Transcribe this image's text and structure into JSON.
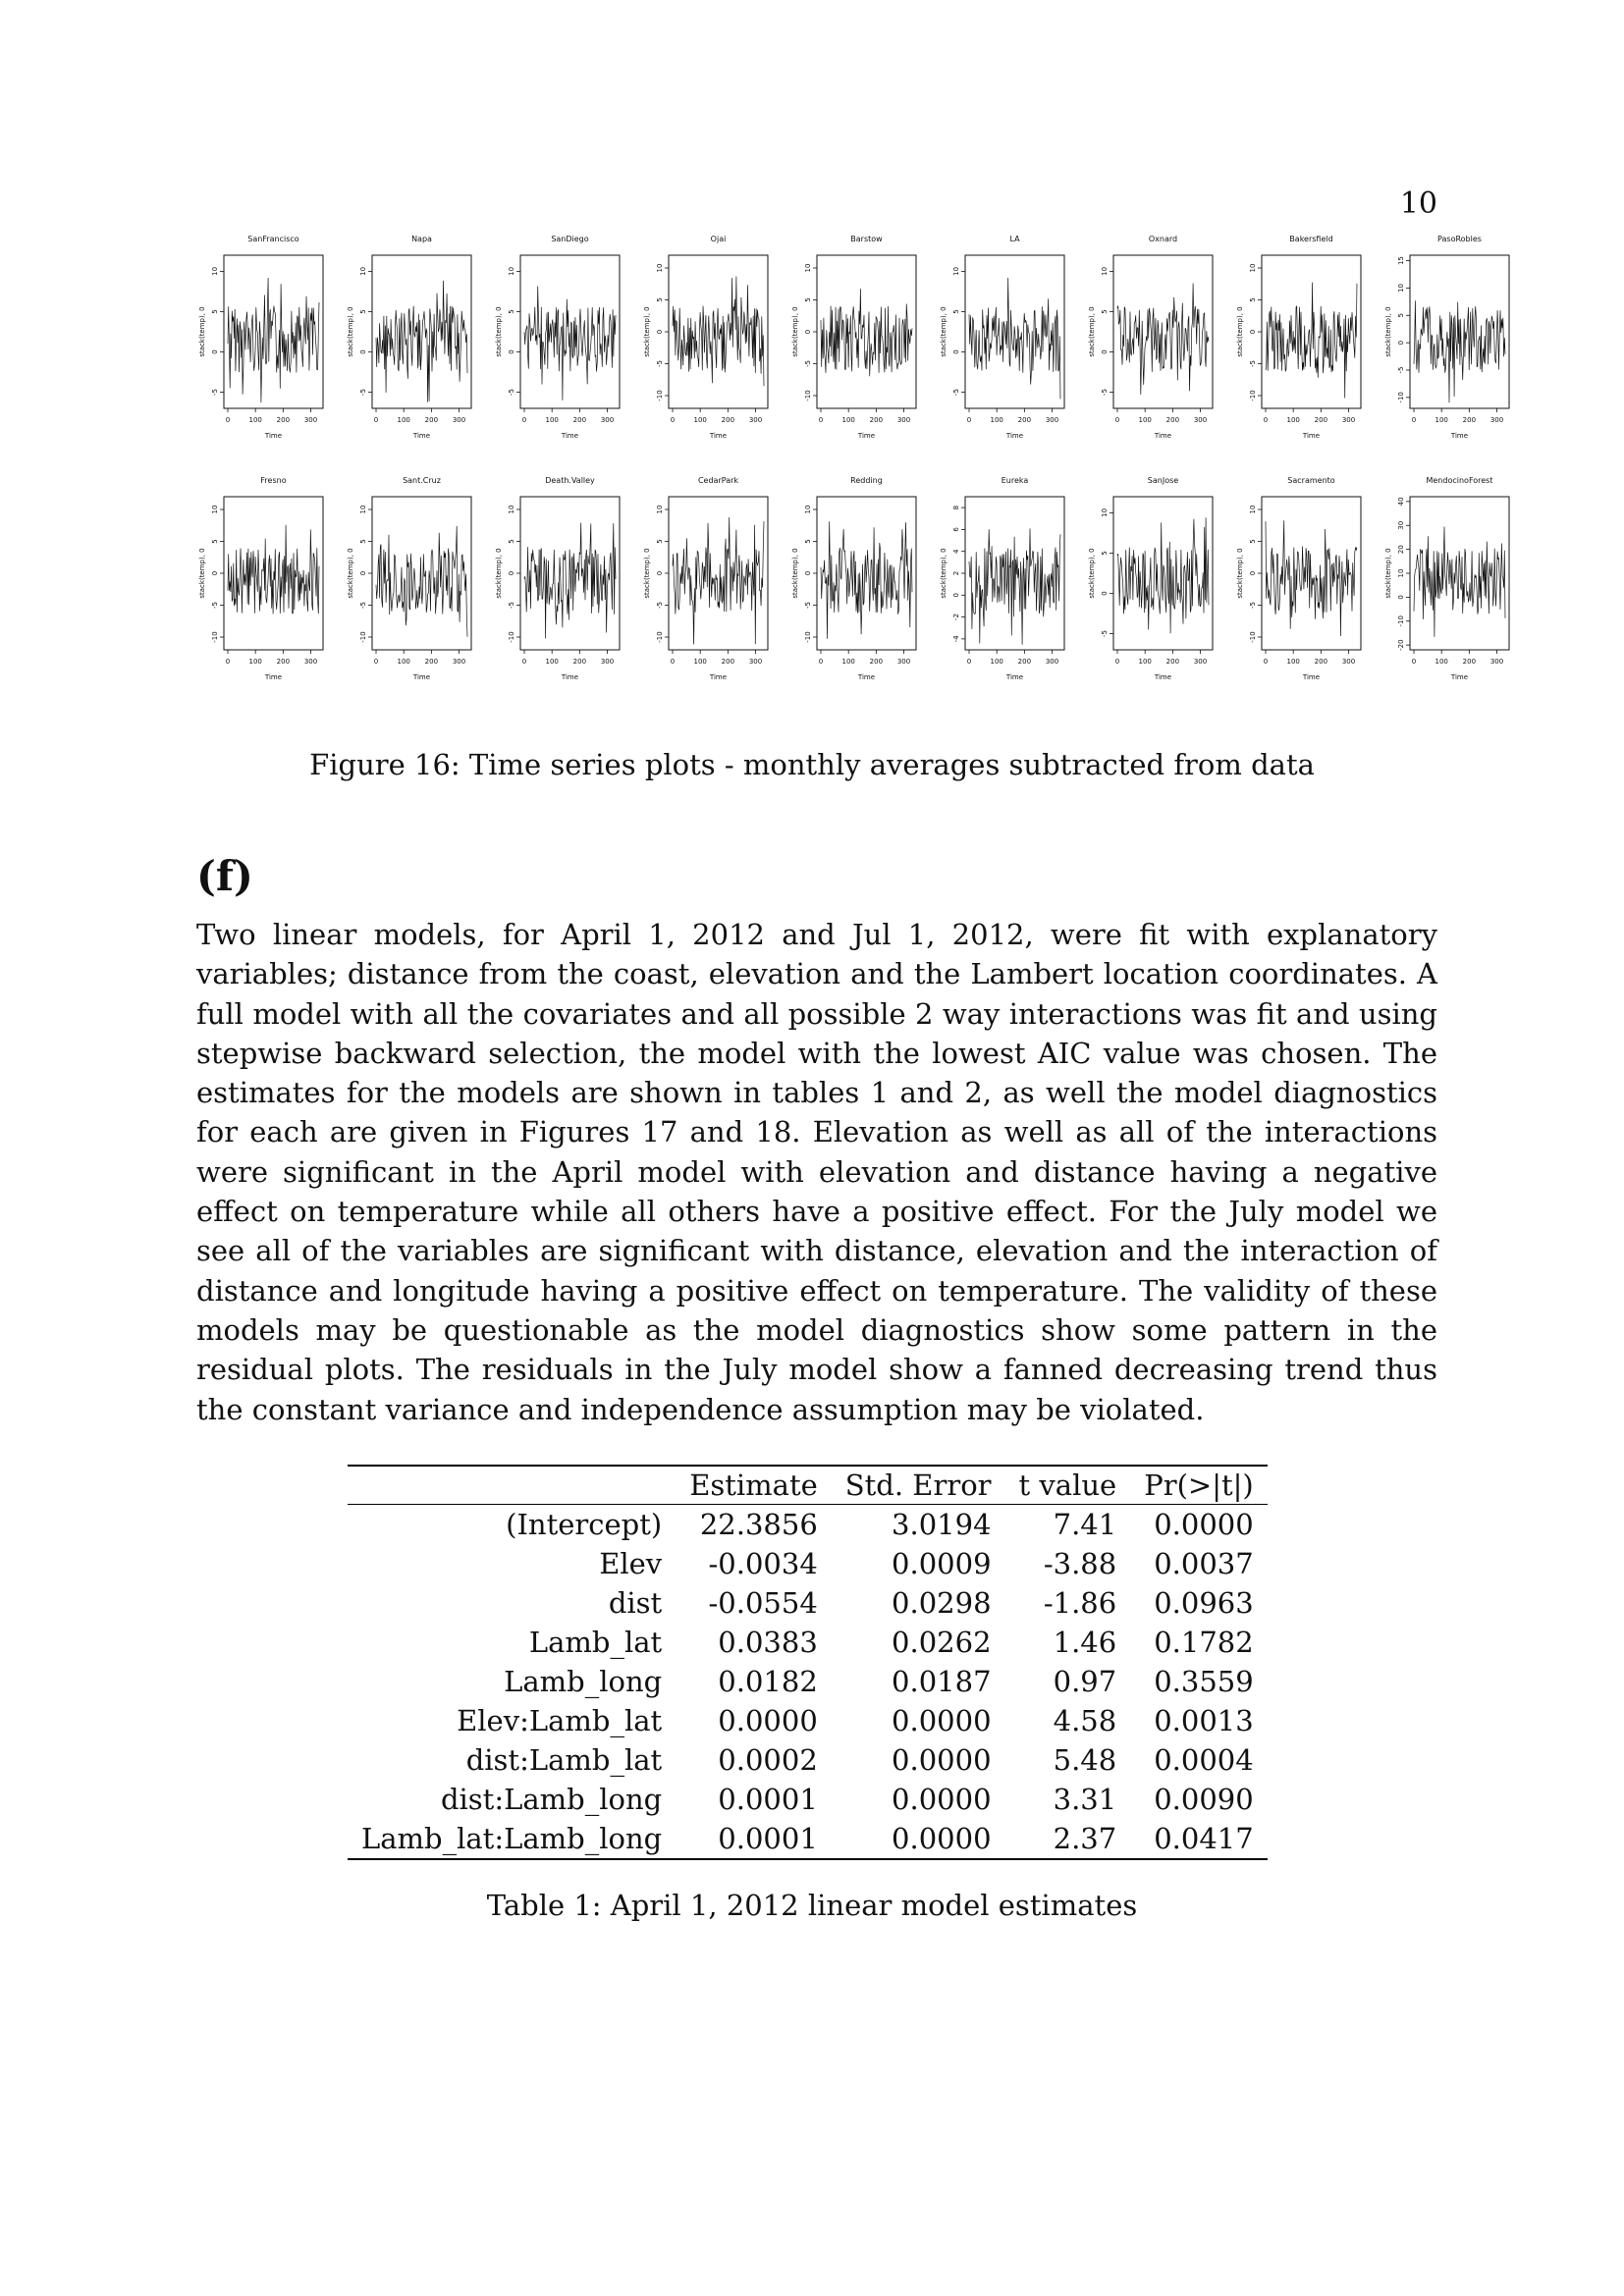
{
  "page_number": "10",
  "figure": {
    "caption": "Figure 16: Time series plots - monthly averages subtracted from data",
    "x_label": "Time",
    "y_label": "stack(temp), 0",
    "x_ticks": [
      "0",
      "100",
      "200",
      "300"
    ],
    "rows": [
      [
        {
          "title": "SanFrancisco",
          "y_ticks": [
            "10",
            "5",
            "0",
            "-5"
          ],
          "ymin": -7,
          "ymax": 12
        },
        {
          "title": "Napa",
          "y_ticks": [
            "10",
            "5",
            "0",
            "-5"
          ],
          "ymin": -7,
          "ymax": 12
        },
        {
          "title": "SanDiego",
          "y_ticks": [
            "10",
            "5",
            "0",
            "-5"
          ],
          "ymin": -7,
          "ymax": 12
        },
        {
          "title": "Ojai",
          "y_ticks": [
            "10",
            "5",
            "0",
            "-5",
            "-10"
          ],
          "ymin": -12,
          "ymax": 12
        },
        {
          "title": "Barstow",
          "y_ticks": [
            "10",
            "5",
            "0",
            "-5",
            "-10"
          ],
          "ymin": -12,
          "ymax": 12
        },
        {
          "title": "LA",
          "y_ticks": [
            "10",
            "5",
            "0",
            "-5"
          ],
          "ymin": -7,
          "ymax": 12
        },
        {
          "title": "Oxnard",
          "y_ticks": [
            "10",
            "5",
            "0",
            "-5"
          ],
          "ymin": -7,
          "ymax": 12
        },
        {
          "title": "Bakersfield",
          "y_ticks": [
            "10",
            "5",
            "0",
            "-5",
            "-10"
          ],
          "ymin": -12,
          "ymax": 12
        },
        {
          "title": "PasoRobles",
          "y_ticks": [
            "15",
            "10",
            "5",
            "0",
            "-5",
            "-10"
          ],
          "ymin": -12,
          "ymax": 16
        }
      ],
      [
        {
          "title": "Fresno",
          "y_ticks": [
            "10",
            "5",
            "0",
            "-5",
            "-10"
          ],
          "ymin": -12,
          "ymax": 12
        },
        {
          "title": "Sant.Cruz",
          "y_ticks": [
            "10",
            "5",
            "0",
            "-5",
            "-10"
          ],
          "ymin": -12,
          "ymax": 12
        },
        {
          "title": "Death.Valley",
          "y_ticks": [
            "10",
            "5",
            "0",
            "-5",
            "-10"
          ],
          "ymin": -12,
          "ymax": 12
        },
        {
          "title": "CedarPark",
          "y_ticks": [
            "10",
            "5",
            "0",
            "-5",
            "-10"
          ],
          "ymin": -12,
          "ymax": 12
        },
        {
          "title": "Redding",
          "y_ticks": [
            "10",
            "5",
            "0",
            "-5",
            "-10"
          ],
          "ymin": -12,
          "ymax": 12
        },
        {
          "title": "Eureka",
          "y_ticks": [
            "8",
            "6",
            "4",
            "2",
            "0",
            "-2",
            "-4"
          ],
          "ymin": -5,
          "ymax": 9
        },
        {
          "title": "SanJose",
          "y_ticks": [
            "10",
            "5",
            "0",
            "-5"
          ],
          "ymin": -7,
          "ymax": 12
        },
        {
          "title": "Sacramento",
          "y_ticks": [
            "10",
            "5",
            "0",
            "-5",
            "-10"
          ],
          "ymin": -12,
          "ymax": 12
        },
        {
          "title": "MendocinoForest",
          "y_ticks": [
            "40",
            "30",
            "20",
            "10",
            "0",
            "-10",
            "-20"
          ],
          "ymin": -22,
          "ymax": 42
        }
      ]
    ]
  },
  "section": {
    "heading": "(f)",
    "paragraph": "Two linear models, for April 1, 2012 and Jul 1, 2012, were fit with explanatory variables; distance from the coast, elevation and the Lambert location coordinates. A full model with all the covariates and all possible 2 way interactions was fit and using stepwise backward selection, the model with the lowest AIC value was chosen. The estimates for the models are shown in tables 1 and 2, as well the model diagnostics for each are given in Figures 17 and 18. Elevation as well as all of the interactions were significant in the April model with elevation and distance having a negative effect on temperature while all others have a positive effect. For the July model we see all of the variables are significant with distance, elevation and the interaction of distance and longitude having a positive effect on temperature. The validity of these models may be questionable as the model diagnostics show some pattern in the residual plots. The residuals in the July model show a fanned decreasing trend thus the constant variance and independence assumption may be violated."
  },
  "table": {
    "caption": "Table 1: April 1, 2012 linear model estimates",
    "headers": [
      "",
      "Estimate",
      "Std. Error",
      "t value",
      "Pr(>|t|)"
    ],
    "rows": [
      [
        "(Intercept)",
        "22.3856",
        "3.0194",
        "7.41",
        "0.0000"
      ],
      [
        "Elev",
        "-0.0034",
        "0.0009",
        "-3.88",
        "0.0037"
      ],
      [
        "dist",
        "-0.0554",
        "0.0298",
        "-1.86",
        "0.0963"
      ],
      [
        "Lamb_lat",
        "0.0383",
        "0.0262",
        "1.46",
        "0.1782"
      ],
      [
        "Lamb_long",
        "0.0182",
        "0.0187",
        "0.97",
        "0.3559"
      ],
      [
        "Elev:Lamb_lat",
        "0.0000",
        "0.0000",
        "4.58",
        "0.0013"
      ],
      [
        "dist:Lamb_lat",
        "0.0002",
        "0.0000",
        "5.48",
        "0.0004"
      ],
      [
        "dist:Lamb_long",
        "0.0001",
        "0.0000",
        "3.31",
        "0.0090"
      ],
      [
        "Lamb_lat:Lamb_long",
        "0.0001",
        "0.0000",
        "2.37",
        "0.0417"
      ]
    ]
  }
}
